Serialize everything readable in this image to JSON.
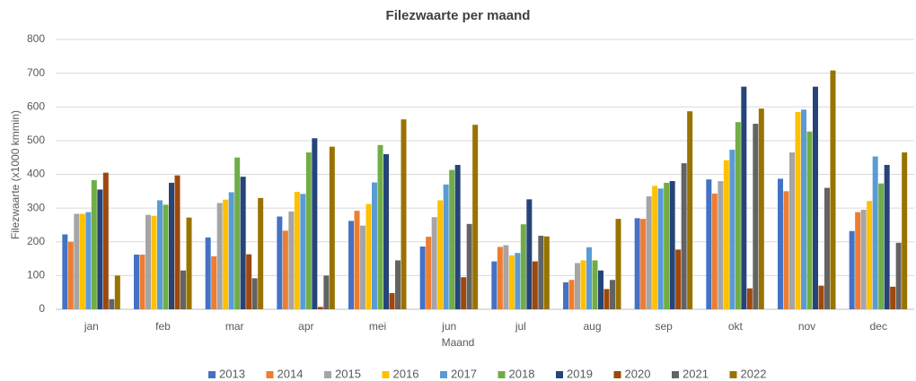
{
  "chart_data": {
    "type": "bar",
    "title": "Filezwaarte per maand",
    "x_label": "Maand",
    "y_label": "Filezwaarte (x1000 kmmin)",
    "categories": [
      "jan",
      "feb",
      "mar",
      "apr",
      "mei",
      "jun",
      "jul",
      "aug",
      "sep",
      "okt",
      "nov",
      "dec"
    ],
    "series": [
      {
        "name": "2013",
        "color": "#4472c4",
        "values": [
          222,
          162,
          213,
          275,
          262,
          186,
          142,
          80,
          270,
          385,
          387,
          232
        ]
      },
      {
        "name": "2014",
        "color": "#ed7d31",
        "values": [
          200,
          162,
          157,
          233,
          292,
          215,
          185,
          87,
          268,
          343,
          350,
          288
        ]
      },
      {
        "name": "2015",
        "color": "#a5a5a5",
        "values": [
          283,
          280,
          315,
          290,
          248,
          273,
          190,
          137,
          335,
          380,
          465,
          295
        ]
      },
      {
        "name": "2016",
        "color": "#ffc000",
        "values": [
          283,
          277,
          325,
          348,
          312,
          323,
          160,
          145,
          366,
          442,
          585,
          321
        ]
      },
      {
        "name": "2017",
        "color": "#5b9bd5",
        "values": [
          288,
          323,
          347,
          342,
          376,
          370,
          167,
          184,
          358,
          473,
          592,
          453
        ]
      },
      {
        "name": "2018",
        "color": "#70ad47",
        "values": [
          383,
          310,
          450,
          465,
          487,
          413,
          252,
          145,
          375,
          555,
          527,
          373
        ]
      },
      {
        "name": "2019",
        "color": "#264478",
        "values": [
          355,
          375,
          393,
          507,
          460,
          428,
          326,
          115,
          380,
          660,
          660,
          428
        ]
      },
      {
        "name": "2020",
        "color": "#9e480e",
        "values": [
          405,
          397,
          163,
          7,
          48,
          95,
          142,
          60,
          177,
          62,
          70,
          67
        ]
      },
      {
        "name": "2021",
        "color": "#636363",
        "values": [
          30,
          115,
          92,
          100,
          145,
          253,
          218,
          87,
          433,
          550,
          360,
          197
        ]
      },
      {
        "name": "2022",
        "color": "#997300",
        "values": [
          100,
          272,
          330,
          482,
          563,
          547,
          216,
          268,
          587,
          595,
          708,
          465
        ]
      }
    ],
    "ylim": [
      0,
      800
    ],
    "yticks": [
      0,
      100,
      200,
      300,
      400,
      500,
      600,
      700,
      800
    ],
    "grid": true,
    "legend": "bottom"
  }
}
